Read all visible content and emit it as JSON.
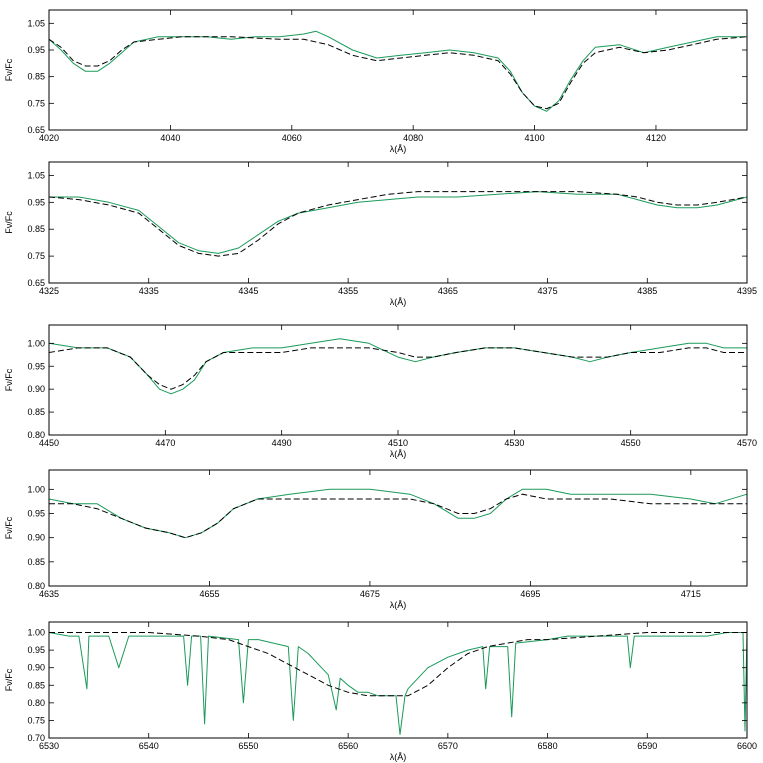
{
  "colors": {
    "observed": "#1a9a5a",
    "model": "#000000"
  },
  "chart_data": [
    {
      "type": "line",
      "xlabel": "λ(Å)",
      "ylabel": "Fν/Fc",
      "xlim": [
        4020,
        4135
      ],
      "ylim": [
        0.65,
        1.1
      ],
      "xticks": [
        4020,
        4040,
        4060,
        4080,
        4100,
        4120
      ],
      "xtick_labels": [
        "4020",
        "4040",
        "4060",
        "4080",
        "4100",
        "4120"
      ],
      "yticks": [
        0.65,
        0.75,
        0.85,
        0.95,
        1.05
      ],
      "ytick_labels": [
        "0.65",
        "0.75",
        "0.85",
        "0.95",
        "1.05"
      ],
      "series": [
        {
          "style": "solid-green",
          "x": [
            4020,
            4022,
            4024,
            4026,
            4028,
            4030,
            4032,
            4034,
            4038,
            4042,
            4046,
            4050,
            4054,
            4058,
            4062,
            4064,
            4066,
            4070,
            4074,
            4078,
            4082,
            4086,
            4090,
            4094,
            4096,
            4098,
            4100,
            4102,
            4104,
            4106,
            4108,
            4110,
            4114,
            4118,
            4122,
            4126,
            4130,
            4135
          ],
          "y": [
            0.99,
            0.95,
            0.9,
            0.87,
            0.87,
            0.9,
            0.94,
            0.98,
            1.0,
            1.0,
            1.0,
            0.99,
            1.0,
            1.0,
            1.01,
            1.02,
            1.0,
            0.95,
            0.92,
            0.93,
            0.94,
            0.95,
            0.94,
            0.92,
            0.87,
            0.79,
            0.74,
            0.72,
            0.76,
            0.84,
            0.91,
            0.96,
            0.97,
            0.94,
            0.96,
            0.98,
            1.0,
            1.0
          ]
        },
        {
          "style": "dashed-black",
          "x": [
            4020,
            4022,
            4024,
            4026,
            4028,
            4030,
            4032,
            4034,
            4038,
            4042,
            4050,
            4058,
            4062,
            4066,
            4070,
            4074,
            4078,
            4082,
            4086,
            4090,
            4094,
            4096,
            4098,
            4100,
            4102,
            4104,
            4106,
            4108,
            4110,
            4114,
            4118,
            4122,
            4126,
            4130,
            4135
          ],
          "y": [
            0.99,
            0.96,
            0.91,
            0.89,
            0.89,
            0.91,
            0.95,
            0.98,
            0.99,
            1.0,
            1.0,
            0.99,
            0.99,
            0.97,
            0.93,
            0.91,
            0.92,
            0.93,
            0.94,
            0.93,
            0.91,
            0.86,
            0.79,
            0.74,
            0.73,
            0.75,
            0.83,
            0.9,
            0.94,
            0.96,
            0.94,
            0.95,
            0.97,
            0.99,
            1.0
          ]
        }
      ]
    },
    {
      "type": "line",
      "xlabel": "λ(Å)",
      "ylabel": "Fν/Fc",
      "xlim": [
        4325,
        4395
      ],
      "ylim": [
        0.65,
        1.1
      ],
      "xticks": [
        4325,
        4335,
        4345,
        4355,
        4365,
        4375,
        4385,
        4395
      ],
      "xtick_labels": [
        "4325",
        "4335",
        "4345",
        "4355",
        "4365",
        "4375",
        "4385",
        "4395"
      ],
      "yticks": [
        0.65,
        0.75,
        0.85,
        0.95,
        1.05
      ],
      "ytick_labels": [
        "0.65",
        "0.75",
        "0.85",
        "0.95",
        "1.05"
      ],
      "series": [
        {
          "style": "solid-green",
          "x": [
            4325,
            4328,
            4331,
            4334,
            4336,
            4338,
            4340,
            4342,
            4344,
            4346,
            4348,
            4350,
            4353,
            4356,
            4359,
            4362,
            4366,
            4370,
            4374,
            4378,
            4382,
            4384,
            4386,
            4388,
            4390,
            4392,
            4395
          ],
          "y": [
            0.97,
            0.97,
            0.95,
            0.92,
            0.86,
            0.8,
            0.77,
            0.76,
            0.78,
            0.83,
            0.88,
            0.91,
            0.93,
            0.95,
            0.96,
            0.97,
            0.97,
            0.98,
            0.99,
            0.98,
            0.98,
            0.96,
            0.94,
            0.93,
            0.93,
            0.94,
            0.97
          ]
        },
        {
          "style": "dashed-black",
          "x": [
            4325,
            4328,
            4331,
            4334,
            4336,
            4338,
            4340,
            4342,
            4344,
            4346,
            4348,
            4350,
            4353,
            4356,
            4359,
            4362,
            4366,
            4370,
            4374,
            4378,
            4382,
            4384,
            4386,
            4388,
            4390,
            4392,
            4395
          ],
          "y": [
            0.97,
            0.96,
            0.94,
            0.91,
            0.85,
            0.79,
            0.76,
            0.75,
            0.76,
            0.81,
            0.87,
            0.91,
            0.94,
            0.96,
            0.98,
            0.99,
            0.99,
            0.99,
            0.99,
            0.99,
            0.98,
            0.97,
            0.95,
            0.94,
            0.94,
            0.95,
            0.97
          ]
        }
      ]
    },
    {
      "type": "line",
      "xlabel": "λ(Å)",
      "ylabel": "Fν/Fc",
      "xlim": [
        4450,
        4570
      ],
      "ylim": [
        0.8,
        1.04
      ],
      "xticks": [
        4450,
        4470,
        4490,
        4510,
        4530,
        4550,
        4570
      ],
      "xtick_labels": [
        "4450",
        "4470",
        "4490",
        "4510",
        "4530",
        "4550",
        "4570"
      ],
      "yticks": [
        0.8,
        0.85,
        0.9,
        0.95,
        1.0
      ],
      "ytick_labels": [
        "0.80",
        "0.85",
        "0.90",
        "0.95",
        "1.00"
      ],
      "series": [
        {
          "style": "solid-green",
          "x": [
            4450,
            4455,
            4460,
            4464,
            4467,
            4469,
            4471,
            4473,
            4475,
            4477,
            4480,
            4485,
            4490,
            4495,
            4500,
            4505,
            4510,
            4513,
            4516,
            4520,
            4525,
            4530,
            4535,
            4540,
            4543,
            4546,
            4550,
            4555,
            4560,
            4563,
            4566,
            4570
          ],
          "y": [
            1.0,
            0.99,
            0.99,
            0.97,
            0.93,
            0.9,
            0.89,
            0.9,
            0.92,
            0.96,
            0.98,
            0.99,
            0.99,
            1.0,
            1.01,
            1.0,
            0.97,
            0.96,
            0.97,
            0.98,
            0.99,
            0.99,
            0.98,
            0.97,
            0.96,
            0.97,
            0.98,
            0.99,
            1.0,
            1.0,
            0.99,
            0.99
          ]
        },
        {
          "style": "dashed-black",
          "x": [
            4450,
            4455,
            4460,
            4464,
            4467,
            4469,
            4471,
            4473,
            4475,
            4477,
            4480,
            4485,
            4490,
            4495,
            4500,
            4505,
            4510,
            4513,
            4516,
            4520,
            4525,
            4530,
            4535,
            4540,
            4543,
            4546,
            4550,
            4555,
            4560,
            4563,
            4566,
            4570
          ],
          "y": [
            0.98,
            0.99,
            0.99,
            0.97,
            0.93,
            0.91,
            0.9,
            0.91,
            0.93,
            0.96,
            0.98,
            0.98,
            0.98,
            0.99,
            0.99,
            0.99,
            0.98,
            0.97,
            0.97,
            0.98,
            0.99,
            0.99,
            0.98,
            0.97,
            0.97,
            0.97,
            0.98,
            0.98,
            0.99,
            0.99,
            0.98,
            0.98
          ]
        }
      ]
    },
    {
      "type": "line",
      "xlabel": "λ(Å)",
      "ylabel": "Fν/Fc",
      "xlim": [
        4635,
        4722
      ],
      "ylim": [
        0.8,
        1.04
      ],
      "xticks": [
        4635,
        4655,
        4675,
        4695,
        4715
      ],
      "xtick_labels": [
        "4635",
        "4655",
        "4675",
        "4695",
        "4715"
      ],
      "yticks": [
        0.8,
        0.85,
        0.9,
        0.95,
        1.0
      ],
      "ytick_labels": [
        "0.80",
        "0.85",
        "0.90",
        "0.95",
        "1.00"
      ],
      "series": [
        {
          "style": "solid-green",
          "x": [
            4635,
            4638,
            4641,
            4644,
            4647,
            4650,
            4652,
            4654,
            4656,
            4658,
            4661,
            4665,
            4670,
            4675,
            4680,
            4683,
            4686,
            4688,
            4690,
            4692,
            4694,
            4697,
            4700,
            4705,
            4710,
            4715,
            4718,
            4722
          ],
          "y": [
            0.98,
            0.97,
            0.97,
            0.94,
            0.92,
            0.91,
            0.9,
            0.91,
            0.93,
            0.96,
            0.98,
            0.99,
            1.0,
            1.0,
            0.99,
            0.97,
            0.94,
            0.94,
            0.95,
            0.98,
            1.0,
            1.0,
            0.99,
            0.99,
            0.99,
            0.98,
            0.97,
            0.99
          ]
        },
        {
          "style": "dashed-black",
          "x": [
            4635,
            4638,
            4641,
            4644,
            4647,
            4650,
            4652,
            4654,
            4656,
            4658,
            4661,
            4665,
            4670,
            4675,
            4680,
            4683,
            4686,
            4688,
            4690,
            4692,
            4694,
            4697,
            4700,
            4705,
            4710,
            4715,
            4718,
            4722
          ],
          "y": [
            0.97,
            0.97,
            0.96,
            0.94,
            0.92,
            0.91,
            0.9,
            0.91,
            0.93,
            0.96,
            0.98,
            0.98,
            0.98,
            0.98,
            0.98,
            0.97,
            0.95,
            0.95,
            0.96,
            0.98,
            0.99,
            0.98,
            0.98,
            0.98,
            0.97,
            0.97,
            0.97,
            0.97
          ]
        }
      ]
    },
    {
      "type": "line",
      "xlabel": "λ(Å)",
      "ylabel": "Fν/Fc",
      "xlim": [
        6530,
        6600
      ],
      "ylim": [
        0.7,
        1.03
      ],
      "xticks": [
        6530,
        6540,
        6550,
        6560,
        6570,
        6580,
        6590,
        6600
      ],
      "xtick_labels": [
        "6530",
        "6540",
        "6550",
        "6560",
        "6570",
        "6580",
        "6590",
        "6600"
      ],
      "yticks": [
        0.7,
        0.75,
        0.8,
        0.85,
        0.9,
        0.95,
        1.0
      ],
      "ytick_labels": [
        "0.70",
        "0.75",
        "0.80",
        "0.85",
        "0.90",
        "0.95",
        "1.00"
      ],
      "series": [
        {
          "style": "solid-green",
          "x": [
            6530,
            6532,
            6533,
            6533.8,
            6534,
            6536,
            6537,
            6538,
            6540,
            6542,
            6543.5,
            6543.9,
            6544.3,
            6545.2,
            6545.6,
            6546,
            6549,
            6549.5,
            6550,
            6551,
            6554,
            6554.5,
            6555,
            6556,
            6557,
            6558,
            6558.8,
            6559.2,
            6560,
            6561,
            6562,
            6563,
            6564,
            6564.8,
            6565.2,
            6565.7,
            6566,
            6568,
            6570,
            6572,
            6573.5,
            6573.8,
            6574.2,
            6576,
            6576.4,
            6576.8,
            6580,
            6582,
            6584,
            6586,
            6588,
            6588.3,
            6588.7,
            6592,
            6596,
            6598,
            6599.6,
            6599.8,
            6600
          ],
          "y": [
            1.0,
            0.99,
            0.99,
            0.84,
            0.99,
            0.99,
            0.9,
            0.99,
            0.99,
            0.99,
            0.99,
            0.85,
            0.99,
            0.99,
            0.74,
            0.99,
            0.98,
            0.8,
            0.98,
            0.98,
            0.96,
            0.75,
            0.96,
            0.94,
            0.91,
            0.88,
            0.78,
            0.87,
            0.85,
            0.83,
            0.83,
            0.82,
            0.82,
            0.82,
            0.71,
            0.82,
            0.84,
            0.9,
            0.93,
            0.95,
            0.96,
            0.84,
            0.96,
            0.96,
            0.76,
            0.97,
            0.98,
            0.99,
            0.99,
            0.99,
            0.99,
            0.9,
            0.99,
            0.99,
            0.99,
            1.0,
            1.0,
            0.72,
            1.0
          ]
        },
        {
          "style": "dashed-black",
          "x": [
            6530,
            6535,
            6540,
            6545,
            6548,
            6550,
            6552,
            6554,
            6556,
            6558,
            6560,
            6562,
            6564,
            6566,
            6568,
            6570,
            6572,
            6574,
            6576,
            6578,
            6580,
            6585,
            6590,
            6595,
            6600
          ],
          "y": [
            1.0,
            1.0,
            1.0,
            0.99,
            0.98,
            0.96,
            0.94,
            0.91,
            0.88,
            0.85,
            0.83,
            0.82,
            0.82,
            0.82,
            0.85,
            0.9,
            0.94,
            0.96,
            0.97,
            0.98,
            0.98,
            0.99,
            1.0,
            1.0,
            1.0
          ]
        }
      ]
    }
  ]
}
